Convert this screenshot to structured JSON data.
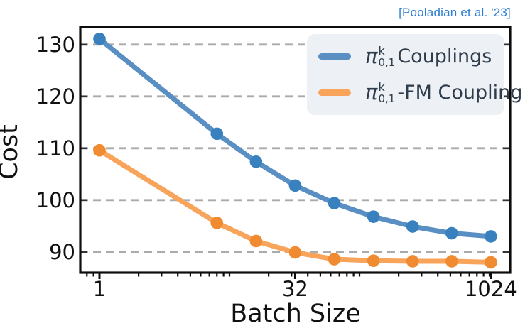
{
  "citation": {
    "text": "[Pooladian et al. '23]",
    "color": "#2e7fd0"
  },
  "legend": {
    "items": [
      {
        "pi": "π",
        "sup": "k",
        "sub": "0,1",
        "rest": "Couplings",
        "color": "#5a8fc4"
      },
      {
        "pi": "π",
        "sup": "k",
        "sub": "0,1",
        "rest": "-FM Coupling",
        "color": "#f8a45a"
      }
    ]
  },
  "chart_data": {
    "type": "line",
    "title": "",
    "xlabel": "Batch Size",
    "ylabel": "Cost",
    "xscale": "log",
    "x": [
      1,
      8,
      16,
      32,
      64,
      128,
      256,
      512,
      1024
    ],
    "series": [
      {
        "name": "pi_{0,1}^k Couplings",
        "color": "#5a8fc4",
        "marker_color": "#3980be",
        "values": [
          131.1,
          112.8,
          107.4,
          102.8,
          99.4,
          96.8,
          94.9,
          93.6,
          93.0
        ]
      },
      {
        "name": "pi_{0,1}^k-FM Coupling",
        "color": "#f8a45a",
        "marker_color": "#f18b31",
        "values": [
          109.6,
          95.6,
          92.1,
          89.9,
          88.6,
          88.3,
          88.2,
          88.2,
          88.0
        ]
      }
    ],
    "xticks": [
      1,
      32,
      1024
    ],
    "yticks": [
      90,
      100,
      110,
      120,
      130
    ],
    "xlim": [
      0.712,
      1440
    ],
    "ylim": [
      86.0,
      133.4
    ],
    "grid": "horizontal-dashed",
    "legend_position": "upper-right",
    "colors": {
      "grid": "#ababab",
      "spine": "#0d0d0d",
      "tick_text": "#111111",
      "legend_bg": "#edf0f4",
      "legend_text": "#2e3c4b"
    }
  }
}
